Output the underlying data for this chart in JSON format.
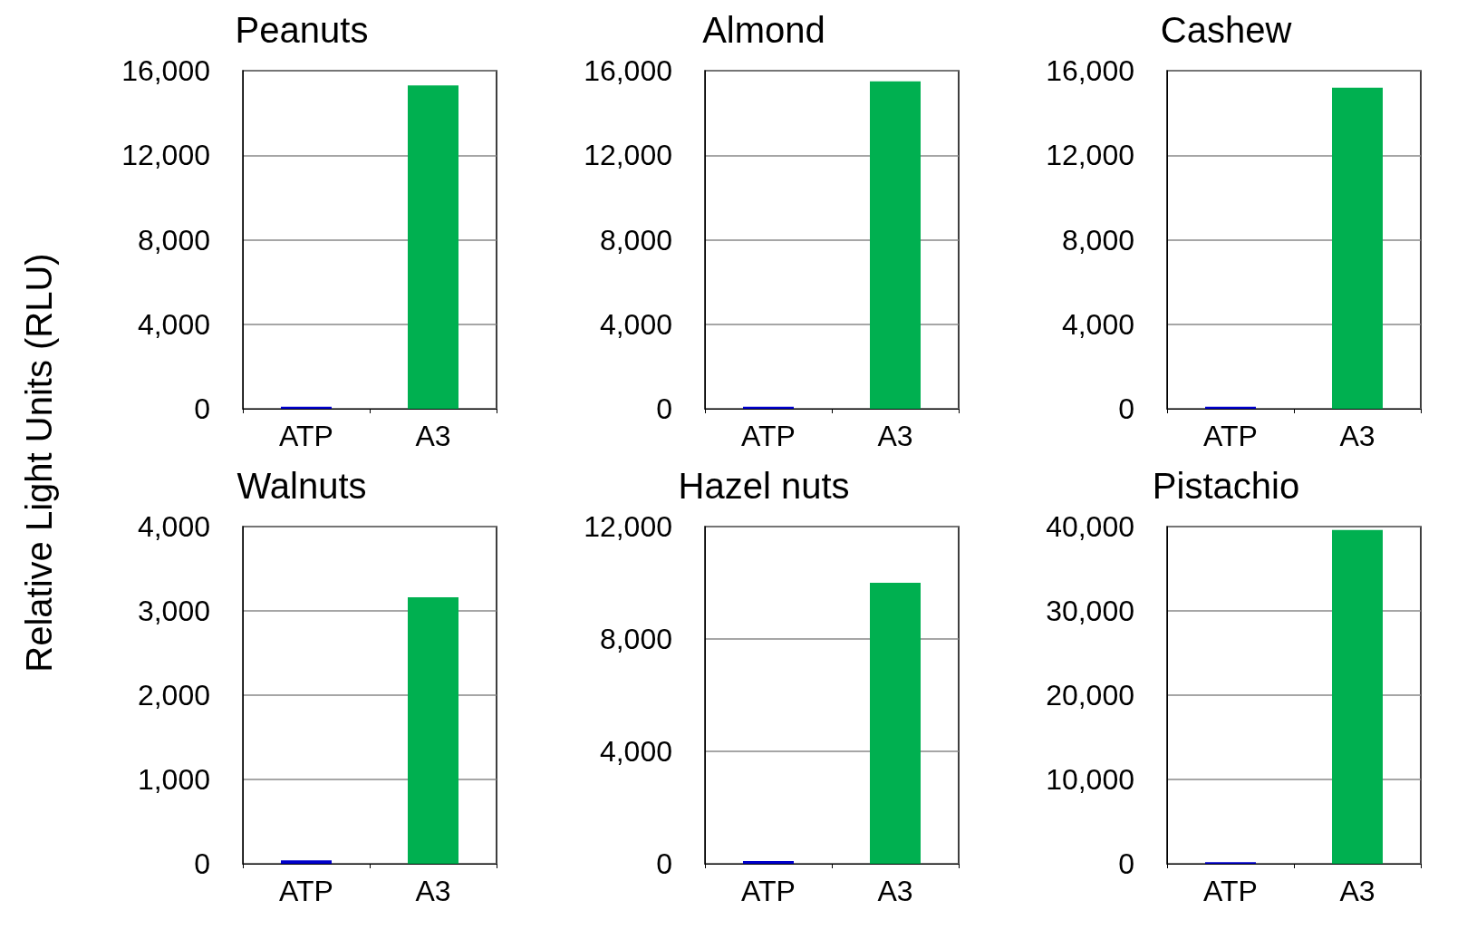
{
  "chart_data": [
    {
      "type": "bar",
      "title": "Peanuts",
      "ylabel": "Relative Light Units (RLU)",
      "categories": [
        "ATP",
        "A3"
      ],
      "values": [
        100,
        15300
      ],
      "colors": [
        "#0000cc",
        "#00b050"
      ],
      "ylim": [
        0,
        16000
      ],
      "yticks": [
        {
          "value": 0,
          "label": "0"
        },
        {
          "value": 4000,
          "label": "4,000"
        },
        {
          "value": 8000,
          "label": "8,000"
        },
        {
          "value": 12000,
          "label": "12,000"
        },
        {
          "value": 16000,
          "label": "16,000"
        }
      ],
      "grid": "y"
    },
    {
      "type": "bar",
      "title": "Almond",
      "categories": [
        "ATP",
        "A3"
      ],
      "values": [
        100,
        15500
      ],
      "colors": [
        "#0000cc",
        "#00b050"
      ],
      "ylim": [
        0,
        16000
      ],
      "yticks": [
        {
          "value": 0,
          "label": "0"
        },
        {
          "value": 4000,
          "label": "4,000"
        },
        {
          "value": 8000,
          "label": "8,000"
        },
        {
          "value": 12000,
          "label": "12,000"
        },
        {
          "value": 16000,
          "label": "16,000"
        }
      ],
      "grid": "y"
    },
    {
      "type": "bar",
      "title": "Cashew",
      "categories": [
        "ATP",
        "A3"
      ],
      "values": [
        100,
        15200
      ],
      "colors": [
        "#0000cc",
        "#00b050"
      ],
      "ylim": [
        0,
        16000
      ],
      "yticks": [
        {
          "value": 0,
          "label": "0"
        },
        {
          "value": 4000,
          "label": "4,000"
        },
        {
          "value": 8000,
          "label": "8,000"
        },
        {
          "value": 12000,
          "label": "12,000"
        },
        {
          "value": 16000,
          "label": "16,000"
        }
      ],
      "grid": "y"
    },
    {
      "type": "bar",
      "title": "Walnuts",
      "categories": [
        "ATP",
        "A3"
      ],
      "values": [
        40,
        3160
      ],
      "colors": [
        "#0000cc",
        "#00b050"
      ],
      "ylim": [
        0,
        4000
      ],
      "yticks": [
        {
          "value": 0,
          "label": "0"
        },
        {
          "value": 1000,
          "label": "1,000"
        },
        {
          "value": 2000,
          "label": "2,000"
        },
        {
          "value": 3000,
          "label": "3,000"
        },
        {
          "value": 4000,
          "label": "4,000"
        }
      ],
      "grid": "y"
    },
    {
      "type": "bar",
      "title": "Hazel nuts",
      "categories": [
        "ATP",
        "A3"
      ],
      "values": [
        100,
        10000
      ],
      "colors": [
        "#0000cc",
        "#00b050"
      ],
      "ylim": [
        0,
        12000
      ],
      "yticks": [
        {
          "value": 0,
          "label": "0"
        },
        {
          "value": 4000,
          "label": "4,000"
        },
        {
          "value": 8000,
          "label": "8,000"
        },
        {
          "value": 12000,
          "label": "12,000"
        }
      ],
      "grid": "y"
    },
    {
      "type": "bar",
      "title": "Pistachio",
      "categories": [
        "ATP",
        "A3"
      ],
      "values": [
        200,
        39600
      ],
      "colors": [
        "#0000cc",
        "#00b050"
      ],
      "ylim": [
        0,
        40000
      ],
      "yticks": [
        {
          "value": 0,
          "label": "0"
        },
        {
          "value": 10000,
          "label": "10,000"
        },
        {
          "value": 20000,
          "label": "20,000"
        },
        {
          "value": 30000,
          "label": "30,000"
        },
        {
          "value": 40000,
          "label": "40,000"
        }
      ],
      "grid": "y"
    }
  ]
}
